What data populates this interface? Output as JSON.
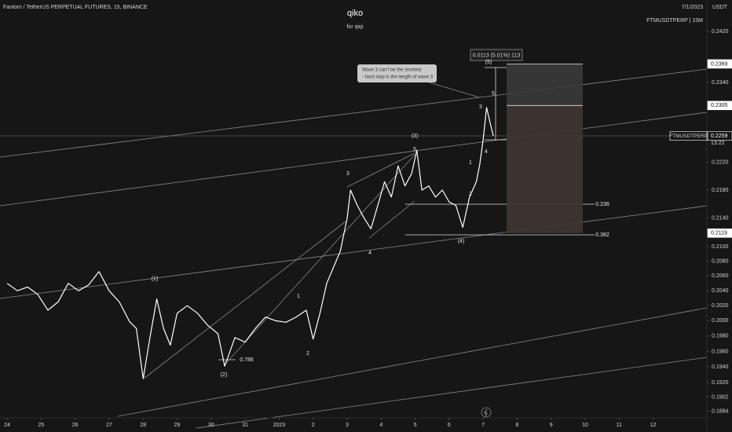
{
  "chart_data": {
    "type": "line",
    "title": "qiko",
    "subtitle": "for qiqi",
    "symbol": "Fantom / TetherUS PERPETUAL FUTURES, 15, BINANCE",
    "date": "7/1/2023",
    "ticker": "FTMUSDTPERP | 15M",
    "currency": "USDT",
    "log_scale": true,
    "grid": false,
    "xlim": [
      -0.21,
      20.58
    ],
    "xticks": [
      {
        "value": 0,
        "label": "24"
      },
      {
        "value": 1,
        "label": "25"
      },
      {
        "value": 2,
        "label": "26"
      },
      {
        "value": 3,
        "label": "27"
      },
      {
        "value": 4,
        "label": "28"
      },
      {
        "value": 5,
        "label": "29"
      },
      {
        "value": 6,
        "label": "30"
      },
      {
        "value": 7,
        "label": "31"
      },
      {
        "value": 8,
        "label": "2023"
      },
      {
        "value": 9,
        "label": "2"
      },
      {
        "value": 10,
        "label": "3"
      },
      {
        "value": 11,
        "label": "4"
      },
      {
        "value": 12,
        "label": "5"
      },
      {
        "value": 13,
        "label": "6"
      },
      {
        "value": 14,
        "label": "7"
      },
      {
        "value": 15,
        "label": "8"
      },
      {
        "value": 16,
        "label": "9"
      },
      {
        "value": 17,
        "label": "10"
      },
      {
        "value": 18,
        "label": "11"
      },
      {
        "value": 19,
        "label": "12"
      }
    ],
    "ylim": [
      0.1876,
      0.2471
    ],
    "yticks": [
      {
        "value": 0.242,
        "label": "0.2420"
      },
      {
        "value": 0.234,
        "label": "0.2340"
      },
      {
        "value": 0.222,
        "label": "0.2220"
      },
      {
        "value": 0.218,
        "label": "0.2180"
      },
      {
        "value": 0.214,
        "label": "0.2140"
      },
      {
        "value": 0.21,
        "label": "0.2100"
      },
      {
        "value": 0.208,
        "label": "0.2080"
      },
      {
        "value": 0.206,
        "label": "0.2060"
      },
      {
        "value": 0.204,
        "label": "0.2040"
      },
      {
        "value": 0.202,
        "label": "0.2020"
      },
      {
        "value": 0.2,
        "label": "0.2000"
      },
      {
        "value": 0.198,
        "label": "0.1980"
      },
      {
        "value": 0.196,
        "label": "0.1960"
      },
      {
        "value": 0.194,
        "label": "0.1940"
      },
      {
        "value": 0.192,
        "label": "0.1920"
      },
      0.1902,
      0.1884
    ],
    "x": [
      0.0,
      0.3,
      0.6,
      0.9,
      1.2,
      1.5,
      1.8,
      2.1,
      2.4,
      2.7,
      3.0,
      3.3,
      3.6,
      3.8,
      4.0,
      4.2,
      4.4,
      4.6,
      4.8,
      5.0,
      5.3,
      5.6,
      5.9,
      6.2,
      6.4,
      6.7,
      7.0,
      7.3,
      7.6,
      7.9,
      8.2,
      8.5,
      8.8,
      9.0,
      9.2,
      9.4,
      9.6,
      9.8,
      9.9,
      10.0,
      10.1,
      10.3,
      10.5,
      10.7,
      10.9,
      11.1,
      11.3,
      11.5,
      11.7,
      11.9,
      12.05,
      12.2,
      12.4,
      12.6,
      12.8,
      13.0,
      13.2,
      13.4,
      13.6,
      13.8,
      13.9,
      14.0,
      14.1,
      14.2,
      14.3
    ],
    "series": [
      {
        "name": "FTMUSDTPERP",
        "color": "#ffffff",
        "values": [
          0.205,
          0.204,
          0.2045,
          0.2035,
          0.2014,
          0.2025,
          0.205,
          0.204,
          0.2048,
          0.2066,
          0.204,
          0.2025,
          0.1999,
          0.199,
          0.1925,
          0.1978,
          0.2029,
          0.199,
          0.1968,
          0.201,
          0.202,
          0.201,
          0.1994,
          0.1983,
          0.1941,
          0.1978,
          0.1972,
          0.199,
          0.2005,
          0.2,
          0.1998,
          0.2005,
          0.2014,
          0.1976,
          0.201,
          0.205,
          0.2072,
          0.2094,
          0.2117,
          0.214,
          0.218,
          0.2158,
          0.214,
          0.2125,
          0.2158,
          0.2192,
          0.217,
          0.2215,
          0.2186,
          0.2204,
          0.2238,
          0.218,
          0.2186,
          0.217,
          0.218,
          0.2163,
          0.2158,
          0.2127,
          0.217,
          0.2192,
          0.2217,
          0.2254,
          0.2302,
          0.228,
          0.2259
        ]
      }
    ],
    "price_labels": [
      0.2369,
      0.2305,
      0.2259,
      0.2119
    ],
    "countdown": "13:22",
    "measure": "0.0113 (5.01%) 113",
    "callout": [
      "Wave 3 can't be the shortest",
      "- hard stop is the length of wave 3"
    ],
    "wave_labels": [
      "(1)",
      "(2)",
      "(3)",
      "(4)",
      "(5)",
      "1",
      "2",
      "3",
      "4",
      "5",
      "1",
      "2",
      "3",
      "4",
      "5",
      "0.786",
      "0.236",
      "0.382"
    ]
  }
}
